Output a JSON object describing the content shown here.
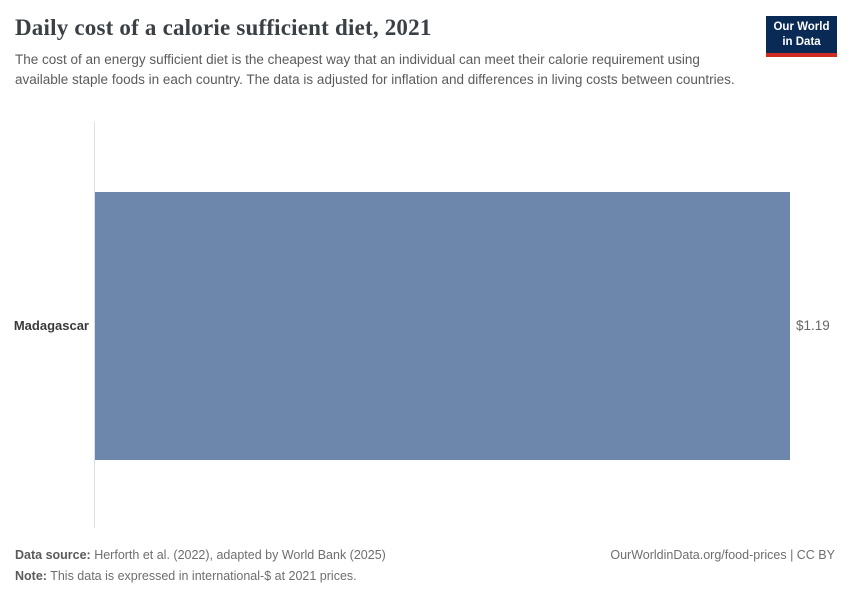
{
  "header": {
    "title": "Daily cost of a calorie sufficient diet, 2021",
    "subtitle": "The cost of an energy sufficient diet is the cheapest way that an individual can meet their calorie requirement using available staple foods in each country. The data is adjusted for inflation and differences in living costs between countries.",
    "logo": {
      "line1": "Our World",
      "line2": "in Data"
    }
  },
  "chart_data": {
    "type": "bar",
    "orientation": "horizontal",
    "title": "Daily cost of a calorie sufficient diet, 2021",
    "categories": [
      "Madagascar"
    ],
    "values": [
      1.19
    ],
    "value_labels": [
      "$1.19"
    ],
    "unit": "international-$ at 2021 prices",
    "xlabel": "",
    "ylabel": "",
    "xlim": [
      0,
      1.19
    ],
    "grid": false,
    "legend": false,
    "bar_color": "#6d86ac"
  },
  "footer": {
    "data_source_label": "Data source:",
    "data_source_text": " Herforth et al. (2022), adapted by World Bank (2025)",
    "note_label": "Note:",
    "note_text": " This data is expressed in international-$ at 2021 prices.",
    "link": "OurWorldinData.org/food-prices | CC BY"
  },
  "colors": {
    "bar": "#6d86ac",
    "axis_line": "#dde0e3",
    "logo_background": "#0a2a56",
    "logo_stripe": "#d02b20"
  }
}
